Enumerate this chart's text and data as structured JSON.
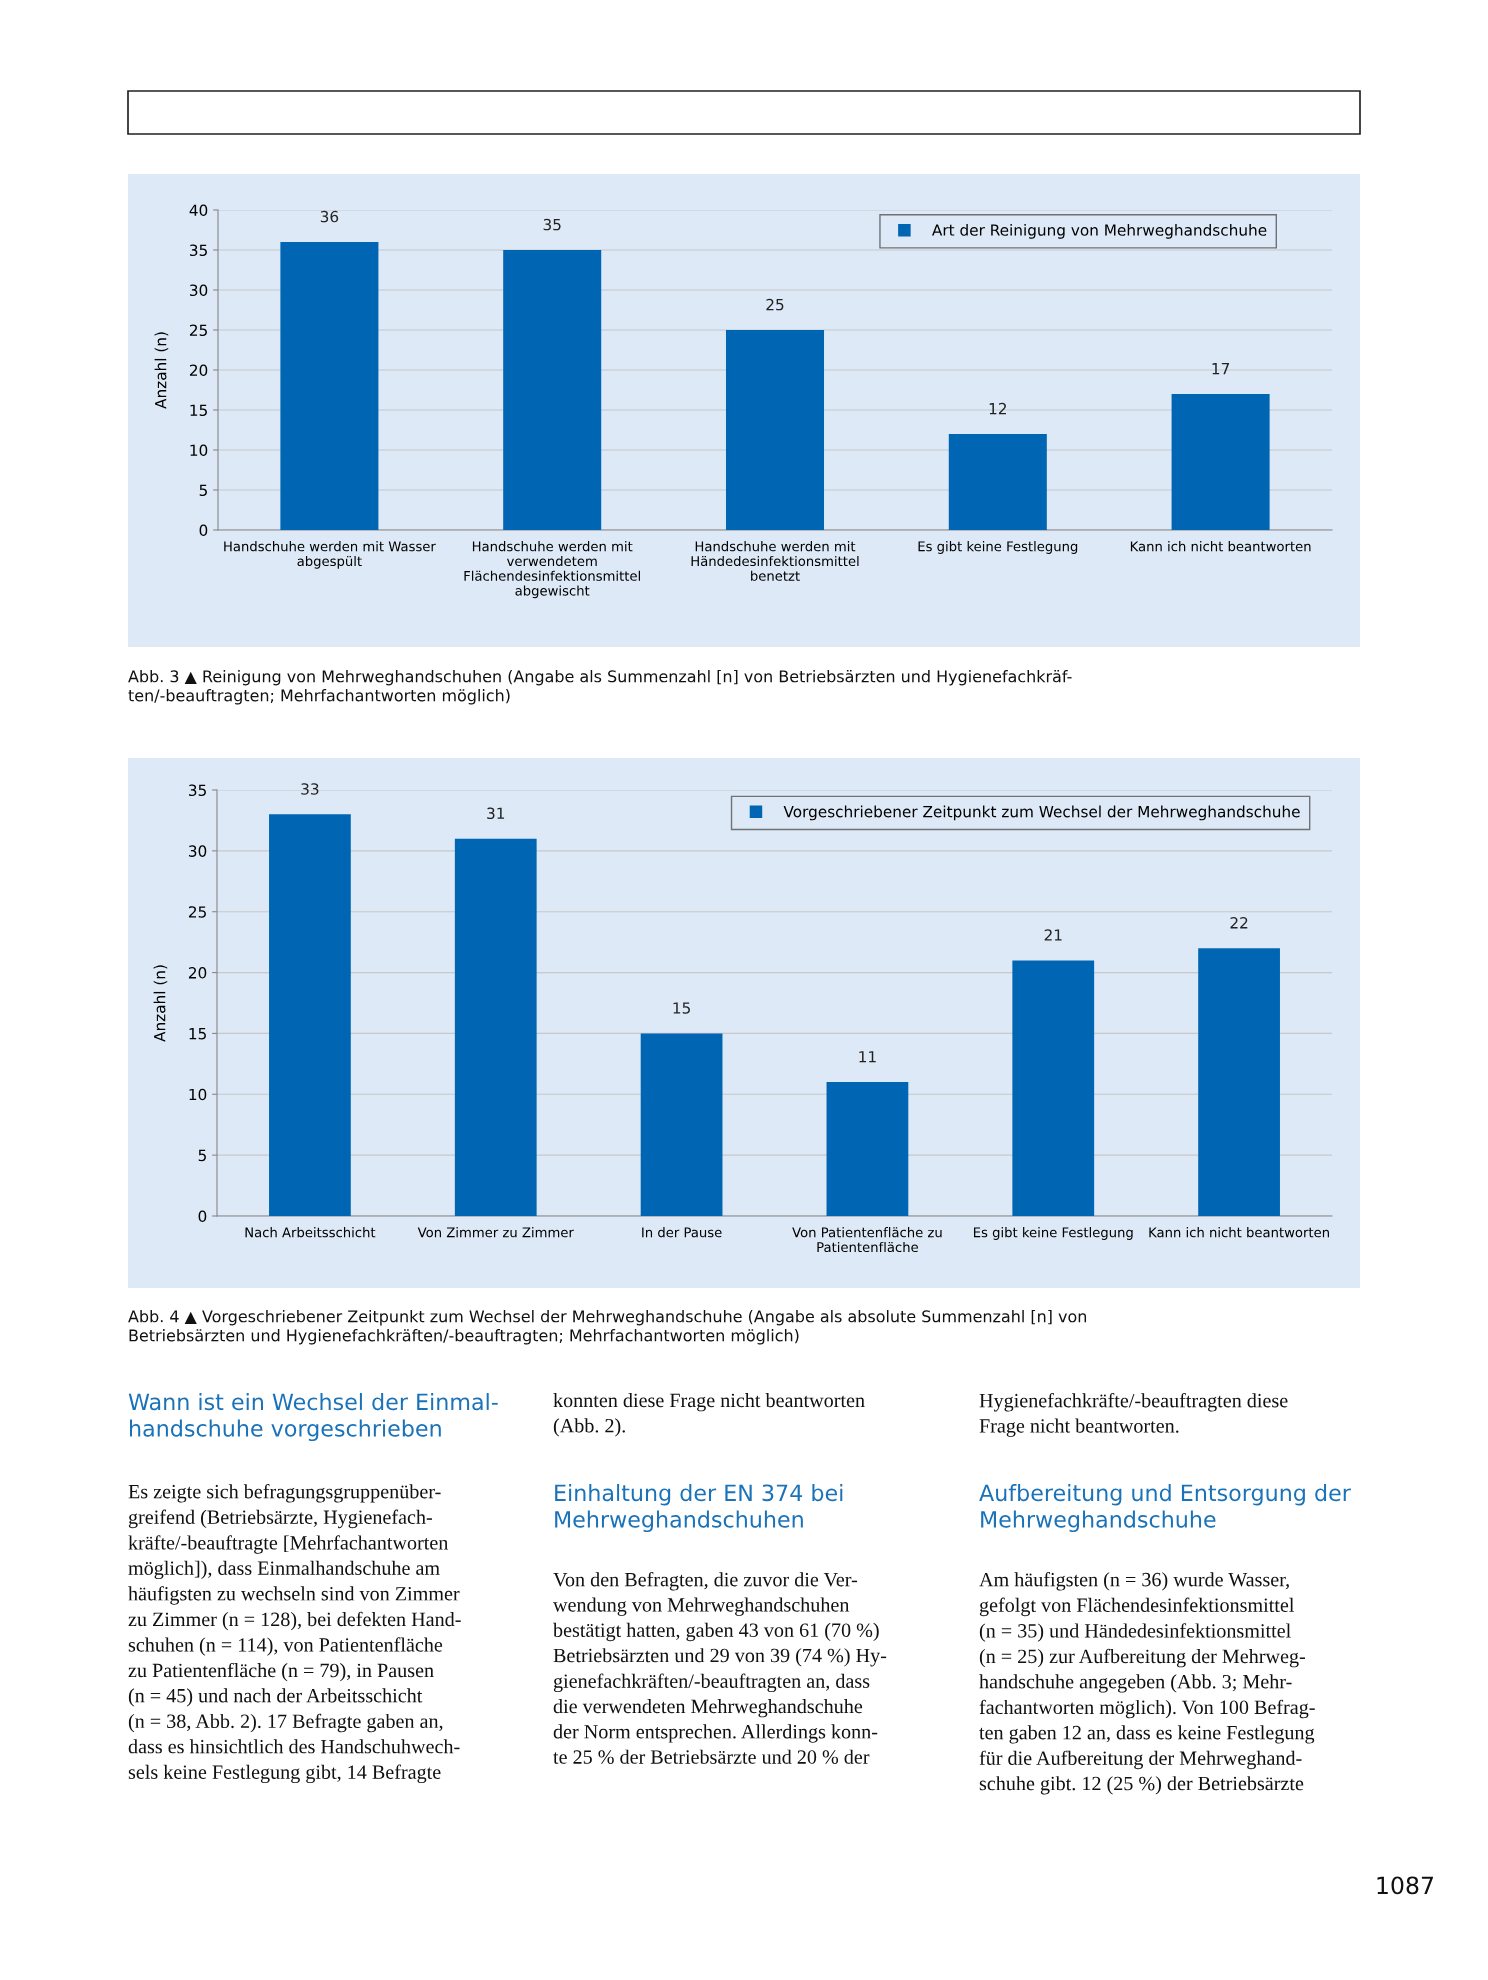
{
  "chart_data": [
    {
      "type": "bar",
      "ylabel": "Anzahl (n)",
      "categories": [
        "Handschuhe werden mit Wasser\nabgespült",
        "Handschuhe werden mit\nverwendetem\nFlächendesinfektionsmittel\nabgewischt",
        "Handschuhe werden mit\nHändedesinfektionsmittel\nbenetzt",
        "Es gibt keine Festlegung",
        "Kann ich nicht beantworten"
      ],
      "series": [
        {
          "name": "Art der Reinigung von Mehrweghandschuhe",
          "color": "#0066b3",
          "values": [
            36,
            35,
            25,
            12,
            17
          ]
        }
      ],
      "ylim": [
        0,
        40
      ],
      "yticks": [
        0,
        5,
        10,
        15,
        20,
        25,
        30,
        35,
        40
      ],
      "grid": "y",
      "legend": "top right",
      "data_labels": true,
      "annotations": [
        "Abb. 3 ▲ Reinigung von Mehrweghandschuhen (Angabe als Summenzahl [n] von Betriebsärzten und Hygienefachkräf-\nten/-beauftragten; Mehrfachantworten möglich)"
      ]
    },
    {
      "type": "bar",
      "ylabel": "Anzahl (n)",
      "categories": [
        "Nach Arbeitsschicht",
        "Von Zimmer zu Zimmer",
        "In der Pause",
        "Von Patientenfläche zu\nPatientenfläche",
        "Es gibt keine Festlegung",
        "Kann ich nicht beantworten"
      ],
      "series": [
        {
          "name": "Vorgeschriebener Zeitpunkt zum Wechsel der Mehrweghandschuhe",
          "color": "#0066b3",
          "values": [
            33,
            31,
            15,
            11,
            21,
            22
          ]
        }
      ],
      "ylim": [
        0,
        35
      ],
      "yticks": [
        0,
        5,
        10,
        15,
        20,
        25,
        30,
        35
      ],
      "grid": "y",
      "legend": "top right",
      "data_labels": true,
      "annotations": [
        "Abb. 4 ▲ Vorgeschriebener Zeitpunkt zum Wechsel der Mehrweghandschuhe (Angabe als absolute Summenzahl [n] von\nBetriebsärzten und Hygienefachkräften/-beauftragten; Mehrfachantworten möglich)",
        "Wann ist ein Wechsel der Einmal-\nhandschuhe vorgeschrieben",
        "Es zeigte sich befragungsgruppenüber-\ngreifend (Betriebsärzte, Hygienefach-\nkräfte/-beauftragte [Mehrfachantworten\nmöglich]), dass Einmalhandschuhe am\nhäufigsten zu wechseln sind von Zimmer\nzu Zimmer (n = 128), bei defekten Hand-\nschuhen (n = 114), von Patientenfläche\nzu Patientenfläche (n = 79), in Pausen\n(n = 45) und nach der Arbeitsschicht\n(n = 38, Abb. 2). 17 Befragte gaben an,\ndass es hinsichtlich des Handschuhwech-\nsels keine Festlegung gibt, 14 Befragte",
        "konnten diese Frage nicht beantworten\n(Abb. 2).",
        "Einhaltung der EN 374 bei\nMehrweghandschuhen",
        "Von den Befragten, die zuvor die Ver-\nwendung von Mehrweghandschuhen\nbestätigt hatten, gaben 43 von 61 (70 %)\nBetriebsärzten und 29 von 39 (74 %) Hy-\ngienefachkräften/-beauftragten an, dass\ndie verwendeten Mehrweghandschuhe\nder Norm entsprechen. Allerdings konn-\nte 25 % der Betriebsärzte und 20 % der",
        "Hygienefachkräfte/-beauftragten diese\nFrage nicht beantworten.",
        "Aufbereitung und Entsorgung der\nMehrweghandschuhe",
        "Am häufigsten (n = 36) wurde Wasser,\ngefolgt von Flächendesinfektionsmittel\n(n = 35) und Händedesinfektionsmittel\n(n = 25) zur Aufbereitung der Mehrweg-\nhandschuhe angegeben (Abb. 3; Mehr-\nfachantworten möglich). Von 100 Befrag-\nten gaben 12 an, dass es keine Festlegung\nfür die Aufbereitung der Mehrweghand-\nschuhe gibt. 12 (25 %) der Betriebsärzte",
        "1087"
      ]
    }
  ]
}
